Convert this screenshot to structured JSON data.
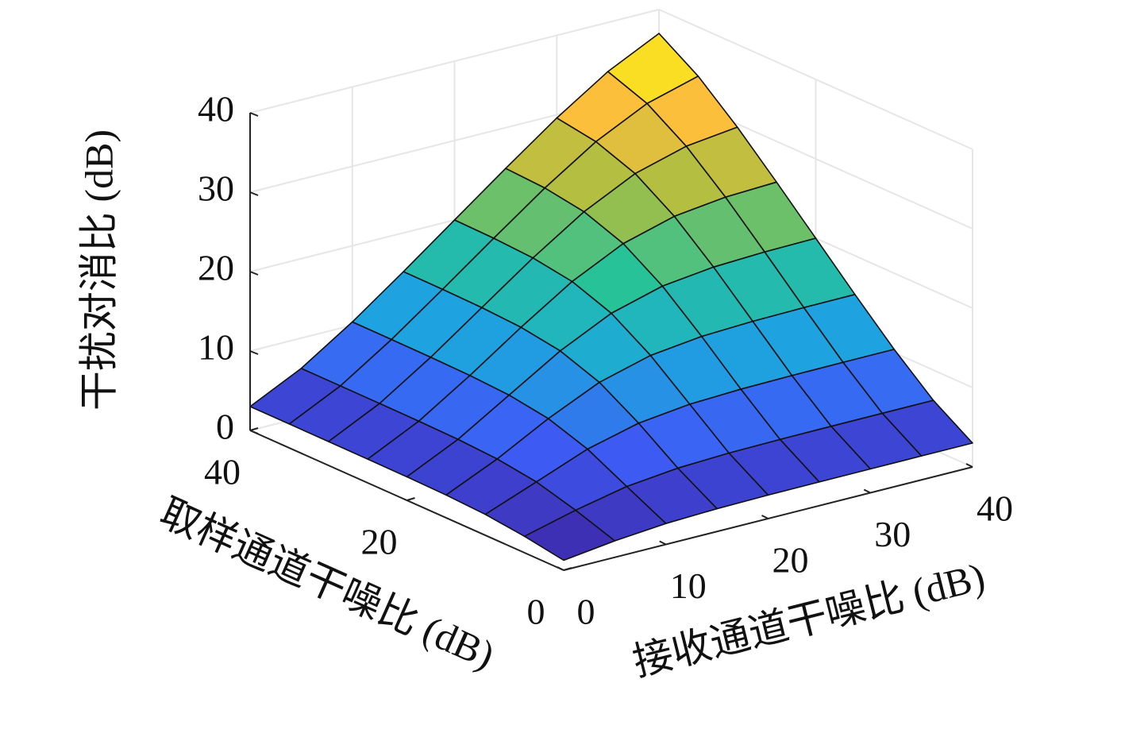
{
  "chart_data": {
    "type": "surface",
    "x": [
      0,
      5,
      10,
      15,
      20,
      25,
      30,
      35,
      40
    ],
    "y": [
      0,
      5,
      10,
      15,
      20,
      25,
      30,
      35,
      40
    ],
    "z": [
      [
        1.25,
        2.07,
        2.63,
        2.87,
        2.96,
        2.99,
        3.0,
        3.01,
        3.01
      ],
      [
        2.07,
        3.73,
        5.09,
        5.78,
        6.05,
        6.14,
        6.17,
        6.18,
        6.19
      ],
      [
        2.63,
        5.09,
        7.6,
        9.24,
        10.0,
        10.27,
        10.36,
        10.4,
        10.41
      ],
      [
        2.87,
        5.78,
        9.24,
        12.18,
        13.94,
        14.71,
        14.99,
        15.09,
        15.12
      ],
      [
        2.96,
        6.05,
        10.0,
        13.94,
        17.05,
        18.85,
        19.62,
        19.9,
        20.0
      ],
      [
        2.99,
        6.14,
        10.27,
        14.71,
        18.85,
        22.0,
        23.81,
        24.6,
        24.87
      ],
      [
        3.0,
        6.17,
        10.36,
        14.99,
        19.62,
        23.81,
        26.99,
        28.81,
        29.59
      ],
      [
        3.01,
        6.18,
        10.4,
        15.09,
        19.9,
        24.6,
        28.81,
        31.99,
        33.81
      ],
      [
        3.01,
        6.19,
        10.41,
        15.12,
        20.0,
        24.87,
        29.59,
        33.81,
        36.99
      ]
    ],
    "xlim": [
      0,
      40
    ],
    "xticks": [
      0,
      10,
      20,
      30,
      40
    ],
    "ylim": [
      0,
      40
    ],
    "yticks": [
      0,
      20,
      40
    ],
    "zlim": [
      0,
      40
    ],
    "zticks": [
      0,
      10,
      20,
      30,
      40
    ],
    "xlabel": "接收通道干噪比 (dB)",
    "ylabel": "取样通道干噪比 (dB)",
    "zlabel": "干扰对消比 (dB)",
    "colormap": [
      "#3e26a8",
      "#3d5df6",
      "#1ca8de",
      "#27c29a",
      "#a6be42",
      "#fbbf3c",
      "#f9fb0e"
    ],
    "grid": true
  }
}
